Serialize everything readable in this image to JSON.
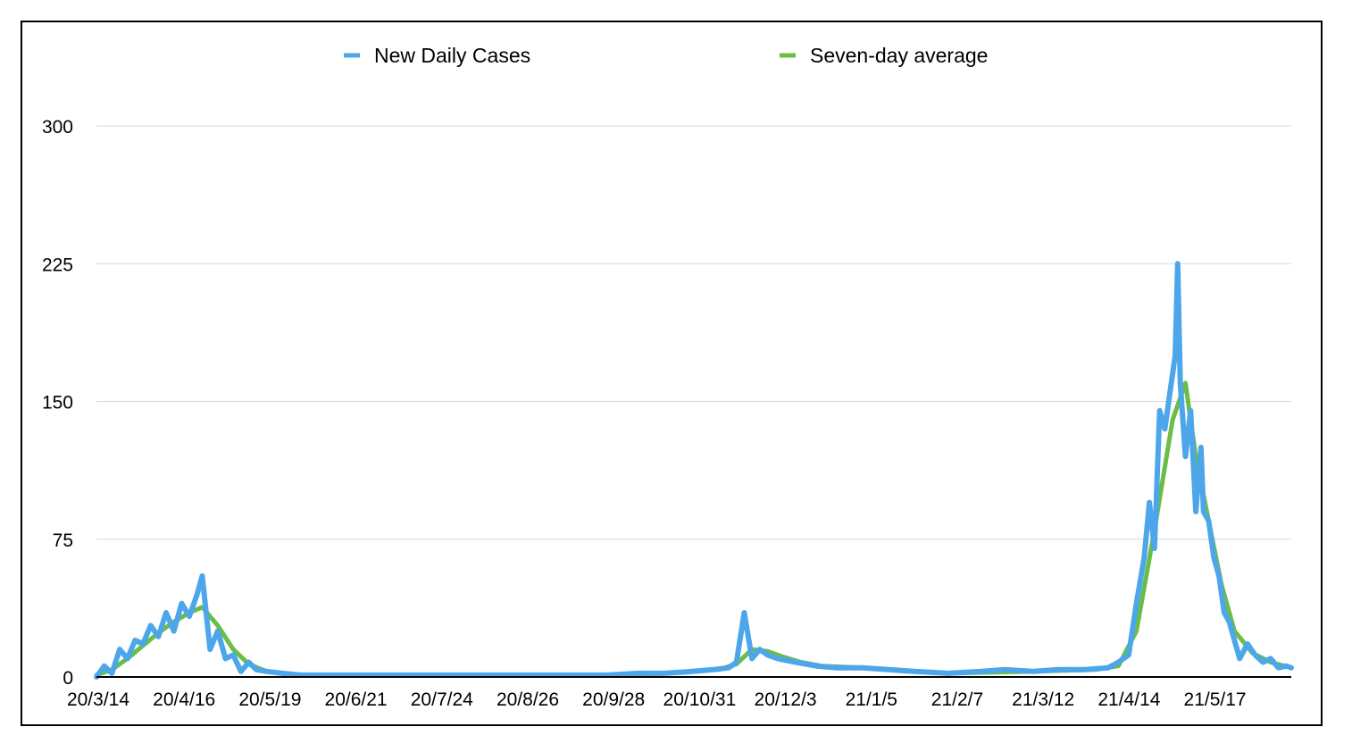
{
  "chart_data": {
    "type": "line",
    "title": "",
    "xlabel": "",
    "ylabel": "",
    "ylim": [
      0,
      300
    ],
    "yticks": [
      0,
      75,
      150,
      225,
      300
    ],
    "grid": true,
    "legend_position": "top-center",
    "x_tick_labels": [
      "20/3/14",
      "20/4/16",
      "20/5/19",
      "20/6/21",
      "20/7/24",
      "20/8/26",
      "20/9/28",
      "20/10/31",
      "20/12/3",
      "21/1/5",
      "21/2/7",
      "21/3/12",
      "21/4/14",
      "21/5/17"
    ],
    "x_start": "2020-03-14",
    "x_end": "2021-06-20",
    "series": [
      {
        "name": "New Daily Cases",
        "color": "#4da6ea",
        "points": [
          [
            "2020-03-14",
            0
          ],
          [
            "2020-03-17",
            6
          ],
          [
            "2020-03-20",
            2
          ],
          [
            "2020-03-23",
            15
          ],
          [
            "2020-03-26",
            10
          ],
          [
            "2020-03-29",
            20
          ],
          [
            "2020-04-01",
            18
          ],
          [
            "2020-04-04",
            28
          ],
          [
            "2020-04-07",
            22
          ],
          [
            "2020-04-10",
            35
          ],
          [
            "2020-04-13",
            25
          ],
          [
            "2020-04-16",
            40
          ],
          [
            "2020-04-19",
            33
          ],
          [
            "2020-04-22",
            45
          ],
          [
            "2020-04-24",
            55
          ],
          [
            "2020-04-27",
            15
          ],
          [
            "2020-04-30",
            25
          ],
          [
            "2020-05-03",
            10
          ],
          [
            "2020-05-06",
            12
          ],
          [
            "2020-05-09",
            3
          ],
          [
            "2020-05-12",
            8
          ],
          [
            "2020-05-15",
            4
          ],
          [
            "2020-05-19",
            3
          ],
          [
            "2020-05-25",
            2
          ],
          [
            "2020-06-01",
            1
          ],
          [
            "2020-06-10",
            1
          ],
          [
            "2020-06-21",
            1
          ],
          [
            "2020-07-01",
            1
          ],
          [
            "2020-07-15",
            1
          ],
          [
            "2020-07-24",
            1
          ],
          [
            "2020-08-10",
            1
          ],
          [
            "2020-08-26",
            1
          ],
          [
            "2020-09-10",
            1
          ],
          [
            "2020-09-28",
            1
          ],
          [
            "2020-10-10",
            2
          ],
          [
            "2020-10-20",
            2
          ],
          [
            "2020-10-31",
            3
          ],
          [
            "2020-11-08",
            4
          ],
          [
            "2020-11-14",
            5
          ],
          [
            "2020-11-17",
            8
          ],
          [
            "2020-11-20",
            35
          ],
          [
            "2020-11-23",
            10
          ],
          [
            "2020-11-26",
            15
          ],
          [
            "2020-11-29",
            12
          ],
          [
            "2020-12-03",
            10
          ],
          [
            "2020-12-10",
            8
          ],
          [
            "2020-12-18",
            6
          ],
          [
            "2020-12-26",
            5
          ],
          [
            "2021-01-05",
            5
          ],
          [
            "2021-01-15",
            4
          ],
          [
            "2021-01-25",
            3
          ],
          [
            "2021-02-07",
            2
          ],
          [
            "2021-02-20",
            3
          ],
          [
            "2021-03-01",
            4
          ],
          [
            "2021-03-12",
            3
          ],
          [
            "2021-03-22",
            4
          ],
          [
            "2021-04-01",
            4
          ],
          [
            "2021-04-10",
            5
          ],
          [
            "2021-04-14",
            8
          ],
          [
            "2021-04-18",
            12
          ],
          [
            "2021-04-21",
            40
          ],
          [
            "2021-04-24",
            65
          ],
          [
            "2021-04-26",
            95
          ],
          [
            "2021-04-28",
            70
          ],
          [
            "2021-04-30",
            145
          ],
          [
            "2021-05-02",
            135
          ],
          [
            "2021-05-04",
            155
          ],
          [
            "2021-05-06",
            175
          ],
          [
            "2021-05-07",
            225
          ],
          [
            "2021-05-08",
            160
          ],
          [
            "2021-05-10",
            120
          ],
          [
            "2021-05-12",
            145
          ],
          [
            "2021-05-14",
            90
          ],
          [
            "2021-05-16",
            125
          ],
          [
            "2021-05-17",
            90
          ],
          [
            "2021-05-19",
            85
          ],
          [
            "2021-05-21",
            65
          ],
          [
            "2021-05-23",
            55
          ],
          [
            "2021-05-25",
            35
          ],
          [
            "2021-05-27",
            30
          ],
          [
            "2021-05-29",
            20
          ],
          [
            "2021-05-31",
            10
          ],
          [
            "2021-06-03",
            18
          ],
          [
            "2021-06-06",
            12
          ],
          [
            "2021-06-09",
            8
          ],
          [
            "2021-06-12",
            10
          ],
          [
            "2021-06-15",
            5
          ],
          [
            "2021-06-18",
            6
          ],
          [
            "2021-06-20",
            5
          ]
        ]
      },
      {
        "name": "Seven-day average",
        "color": "#6abd45",
        "points": [
          [
            "2020-03-14",
            1
          ],
          [
            "2020-03-20",
            4
          ],
          [
            "2020-03-26",
            10
          ],
          [
            "2020-04-01",
            17
          ],
          [
            "2020-04-07",
            24
          ],
          [
            "2020-04-13",
            30
          ],
          [
            "2020-04-19",
            35
          ],
          [
            "2020-04-24",
            38
          ],
          [
            "2020-04-30",
            28
          ],
          [
            "2020-05-06",
            15
          ],
          [
            "2020-05-12",
            7
          ],
          [
            "2020-05-19",
            3
          ],
          [
            "2020-06-01",
            1
          ],
          [
            "2020-07-01",
            1
          ],
          [
            "2020-08-01",
            1
          ],
          [
            "2020-09-01",
            1
          ],
          [
            "2020-10-01",
            1
          ],
          [
            "2020-10-20",
            2
          ],
          [
            "2020-10-31",
            3
          ],
          [
            "2020-11-10",
            4
          ],
          [
            "2020-11-17",
            7
          ],
          [
            "2020-11-23",
            15
          ],
          [
            "2020-11-29",
            14
          ],
          [
            "2020-12-05",
            11
          ],
          [
            "2020-12-12",
            8
          ],
          [
            "2020-12-20",
            6
          ],
          [
            "2021-01-05",
            5
          ],
          [
            "2021-01-25",
            3
          ],
          [
            "2021-02-07",
            2
          ],
          [
            "2021-03-12",
            3
          ],
          [
            "2021-04-05",
            4
          ],
          [
            "2021-04-14",
            6
          ],
          [
            "2021-04-21",
            25
          ],
          [
            "2021-04-28",
            80
          ],
          [
            "2021-05-05",
            140
          ],
          [
            "2021-05-10",
            160
          ],
          [
            "2021-05-14",
            120
          ],
          [
            "2021-05-19",
            85
          ],
          [
            "2021-05-24",
            50
          ],
          [
            "2021-05-29",
            25
          ],
          [
            "2021-06-05",
            13
          ],
          [
            "2021-06-12",
            8
          ],
          [
            "2021-06-20",
            5
          ]
        ]
      }
    ]
  }
}
